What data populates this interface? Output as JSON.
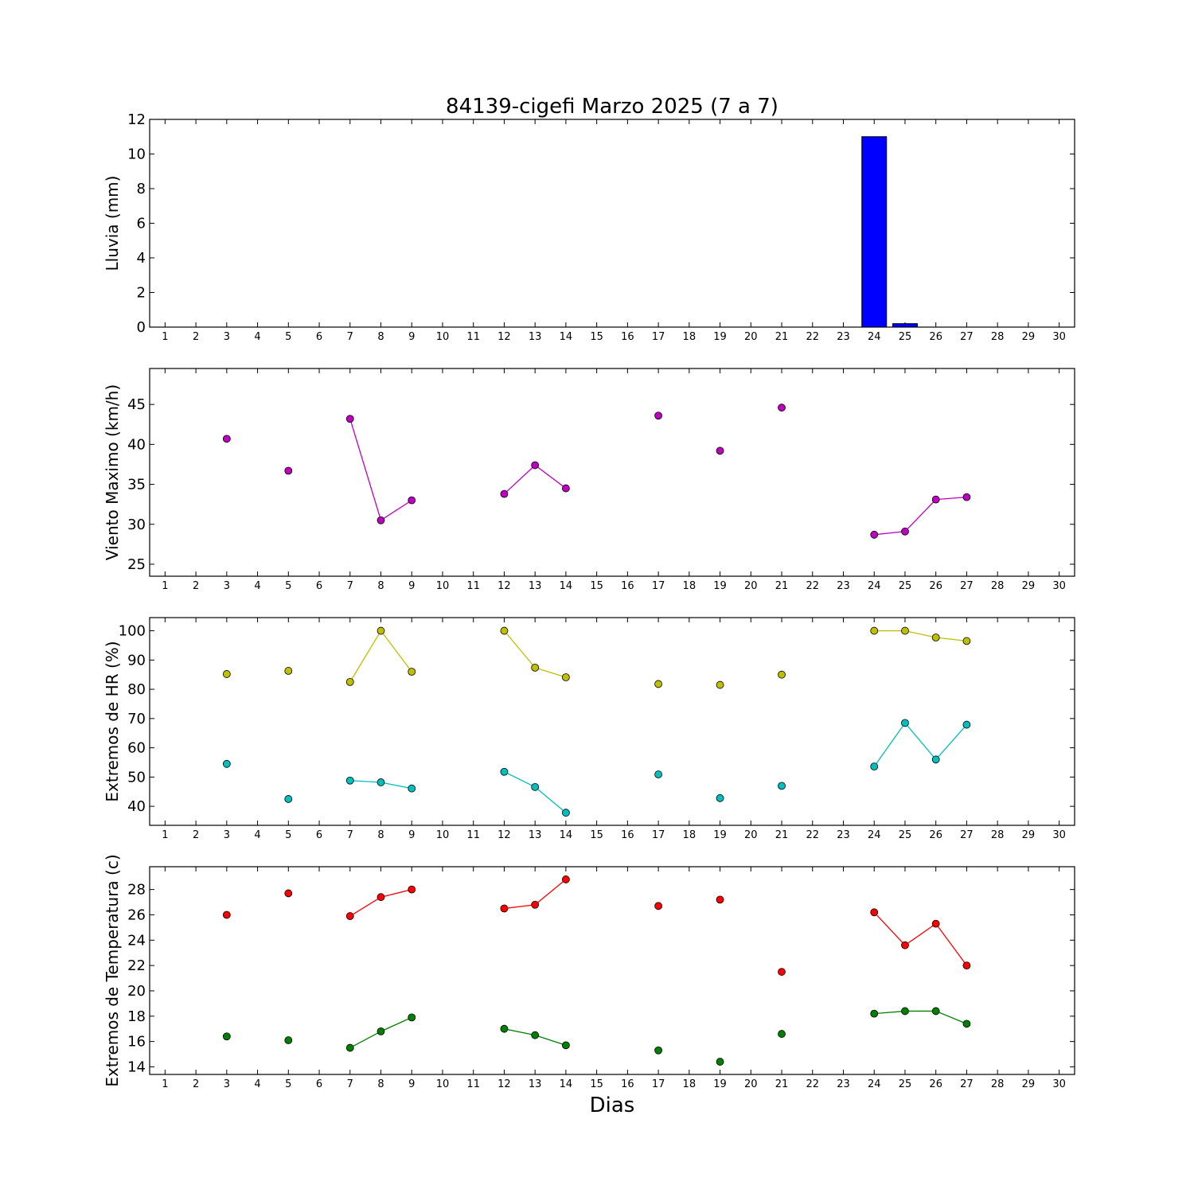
{
  "chart_data": [
    {
      "type": "bar",
      "title": "84139-cigefi Marzo 2025  (7 a 7)",
      "ylabel": "Lluvia (mm)",
      "ylim": [
        0,
        12
      ],
      "yticks": [
        0,
        2,
        4,
        6,
        8,
        10,
        12
      ],
      "xlim": [
        0.5,
        30.5
      ],
      "categories": [
        1,
        2,
        3,
        4,
        5,
        6,
        7,
        8,
        9,
        10,
        11,
        12,
        13,
        14,
        15,
        16,
        17,
        18,
        19,
        20,
        21,
        22,
        23,
        24,
        25,
        26,
        27,
        28,
        29,
        30
      ],
      "series": [
        {
          "color": "#0000ff",
          "x": [
            3,
            5,
            7,
            8,
            9,
            12,
            13,
            14,
            17,
            19,
            21,
            24,
            25,
            26,
            27
          ],
          "values": [
            0,
            0,
            0,
            0,
            0,
            0,
            0,
            0,
            0,
            0,
            0,
            11.0,
            0.2,
            0,
            0
          ]
        }
      ]
    },
    {
      "type": "line",
      "ylabel": "Viento Maximo (km/h)",
      "ylim": [
        23.5,
        49.5
      ],
      "yticks": [
        25,
        30,
        35,
        40,
        45
      ],
      "xlim": [
        0.5,
        30.5
      ],
      "categories": [
        1,
        2,
        3,
        4,
        5,
        6,
        7,
        8,
        9,
        10,
        11,
        12,
        13,
        14,
        15,
        16,
        17,
        18,
        19,
        20,
        21,
        22,
        23,
        24,
        25,
        26,
        27,
        28,
        29,
        30
      ],
      "series": [
        {
          "color": "#c000c0",
          "x": [
            3,
            5,
            7,
            8,
            9,
            12,
            13,
            14,
            17,
            19,
            21,
            24,
            25,
            26,
            27
          ],
          "values": [
            40.7,
            36.7,
            43.2,
            30.5,
            33.0,
            33.8,
            37.4,
            34.5,
            43.6,
            39.2,
            44.6,
            28.7,
            29.1,
            33.1,
            33.4
          ]
        }
      ]
    },
    {
      "type": "line",
      "ylabel": "Extremos de HR (%)",
      "ylim": [
        33.5,
        104.5
      ],
      "yticks": [
        40,
        50,
        60,
        70,
        80,
        90,
        100
      ],
      "xlim": [
        0.5,
        30.5
      ],
      "categories": [
        1,
        2,
        3,
        4,
        5,
        6,
        7,
        8,
        9,
        10,
        11,
        12,
        13,
        14,
        15,
        16,
        17,
        18,
        19,
        20,
        21,
        22,
        23,
        24,
        25,
        26,
        27,
        28,
        29,
        30
      ],
      "series": [
        {
          "color": "#bfbf00",
          "x": [
            3,
            5,
            7,
            8,
            9,
            12,
            13,
            14,
            17,
            19,
            21,
            24,
            25,
            26,
            27
          ],
          "values": [
            85.2,
            86.3,
            82.5,
            100,
            86.0,
            100,
            87.4,
            84.1,
            81.8,
            81.5,
            85.0,
            100,
            100,
            97.7,
            96.5
          ]
        },
        {
          "color": "#00bfbf",
          "x": [
            3,
            5,
            7,
            8,
            9,
            12,
            13,
            14,
            17,
            19,
            21,
            24,
            25,
            26,
            27
          ],
          "values": [
            54.5,
            42.5,
            48.8,
            48.2,
            46.1,
            51.8,
            46.6,
            37.8,
            50.9,
            42.8,
            47.0,
            53.6,
            68.5,
            56.0,
            67.9
          ]
        }
      ]
    },
    {
      "type": "line",
      "ylabel": "Extremos de Temperatura (c)",
      "xlabel": "Dias",
      "ylim": [
        13.4,
        29.8
      ],
      "yticks": [
        14,
        16,
        18,
        20,
        22,
        24,
        26,
        28
      ],
      "xlim": [
        0.5,
        30.5
      ],
      "categories": [
        1,
        2,
        3,
        4,
        5,
        6,
        7,
        8,
        9,
        10,
        11,
        12,
        13,
        14,
        15,
        16,
        17,
        18,
        19,
        20,
        21,
        22,
        23,
        24,
        25,
        26,
        27,
        28,
        29,
        30
      ],
      "series": [
        {
          "color": "#ff0000",
          "x": [
            3,
            5,
            7,
            8,
            9,
            12,
            13,
            14,
            17,
            19,
            21,
            24,
            25,
            26,
            27
          ],
          "values": [
            26.0,
            27.7,
            25.9,
            27.4,
            28.0,
            26.5,
            26.8,
            28.8,
            26.7,
            27.2,
            21.5,
            26.2,
            23.6,
            25.3,
            22.0
          ]
        },
        {
          "color": "#008000",
          "x": [
            3,
            5,
            7,
            8,
            9,
            12,
            13,
            14,
            17,
            19,
            21,
            24,
            25,
            26,
            27
          ],
          "values": [
            16.4,
            16.1,
            15.5,
            16.8,
            17.9,
            17.0,
            16.5,
            15.7,
            15.3,
            14.4,
            16.6,
            18.2,
            18.4,
            18.4,
            17.4
          ]
        }
      ]
    }
  ]
}
